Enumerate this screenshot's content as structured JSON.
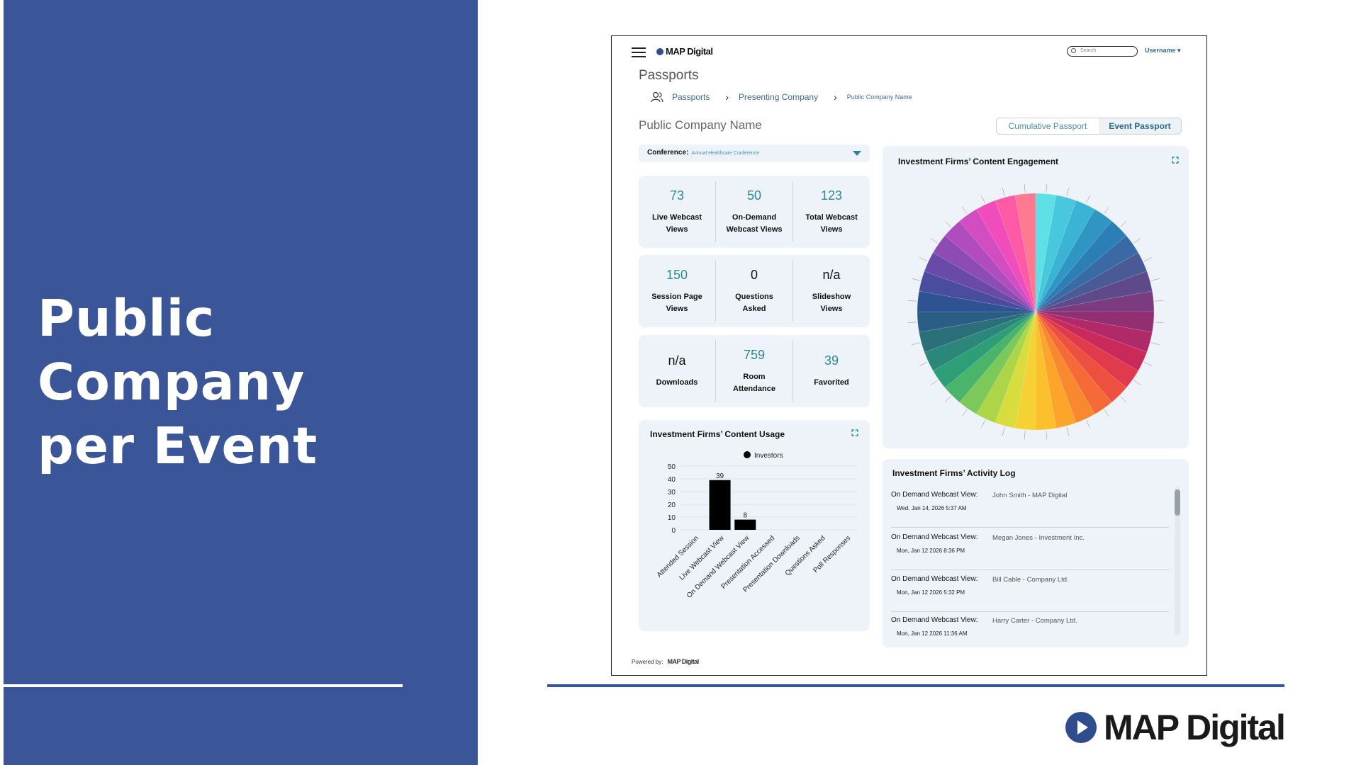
{
  "slide": {
    "title_line1": "Public Company",
    "title_line2": "per Event",
    "brand": "MAP Digital"
  },
  "app": {
    "logo": "MAP Digital",
    "search_placeholder": "Search",
    "username": "Username",
    "page_heading": "Passports",
    "breadcrumb": {
      "item1": "Passports",
      "item2": "Presenting Company",
      "item3": "Public Company Name"
    },
    "company_name": "Public Company Name",
    "passport_tabs": {
      "cumulative": "Cumulative Passport",
      "event": "Event Passport"
    },
    "conference": {
      "label": "Conference:",
      "value": "Annual Healthcare Conference"
    },
    "stats": [
      [
        {
          "value": "73",
          "label1": "Live Webcast",
          "label2": "Views"
        },
        {
          "value": "50",
          "label1": "On-Demand",
          "label2": "Webcast Views"
        },
        {
          "value": "123",
          "label1": "Total Webcast",
          "label2": "Views"
        }
      ],
      [
        {
          "value": "150",
          "label1": "Session Page",
          "label2": "Views"
        },
        {
          "value": "0",
          "label1": "Questions",
          "label2": "Asked"
        },
        {
          "value": "n/a",
          "label1": "Slideshow",
          "label2": "Views"
        }
      ],
      [
        {
          "value": "n/a",
          "label1": "Downloads",
          "label2": ""
        },
        {
          "value": "759",
          "label1": "Room",
          "label2": "Attendance"
        },
        {
          "value": "39",
          "label1": "Favorited",
          "label2": ""
        }
      ]
    ],
    "usage_title": "Investment Firms’ Content Usage",
    "engagement_title": "Investment Firms’ Content Engagement",
    "activity_title": "Investment Firms’ Activity Log",
    "activity": [
      {
        "type": "On Demand Webcast View:",
        "who": "John Smith - MAP Digital",
        "when": "Wed, Jan 14, 2026 5:37 AM"
      },
      {
        "type": "On Demand Webcast View:",
        "who": "Megan Jones - Investment Inc.",
        "when": "Mon, Jan 12 2026 8:36 PM"
      },
      {
        "type": "On Demand Webcast View:",
        "who": "Bill Cable - Company Ltd.",
        "when": "Mon, Jan 12 2026 5:32 PM"
      },
      {
        "type": "On Demand Webcast View:",
        "who": "Harry Carter - Company Ltd.",
        "when": "Mon, Jan 12 2026 11:36 AM"
      }
    ],
    "powered_by": "Powered by:",
    "powered_logo": "MAP Digital"
  },
  "chart_data": [
    {
      "type": "bar",
      "title": "Investment Firms’ Content Usage",
      "categories": [
        "Attended Session",
        "Live Webcast View",
        "On Demand Webcast View",
        "Presentation Accessed",
        "Presentation Downloads",
        "Questions Asked",
        "Poll Responses"
      ],
      "series": [
        {
          "name": "Investors",
          "values": [
            0,
            39,
            8,
            0,
            0,
            0,
            0
          ],
          "color": "#000000"
        }
      ],
      "data_labels": [
        "",
        "39",
        "8",
        "",
        "",
        "",
        ""
      ],
      "ylim": [
        0,
        50
      ],
      "yticks": [
        0,
        10,
        20,
        30,
        40,
        50
      ],
      "grid": true,
      "legend": "top"
    },
    {
      "type": "pie",
      "title": "Investment Firms’ Content Engagement",
      "slices": 36,
      "values": [
        1,
        1,
        1,
        1,
        1,
        1,
        1,
        1,
        1,
        1,
        1,
        1,
        1,
        1,
        1,
        1,
        1,
        1,
        1,
        1,
        1,
        1,
        1,
        1,
        1,
        1,
        1,
        1,
        1,
        1,
        1,
        1,
        1,
        1,
        1,
        1
      ],
      "colors": [
        "#5ee0e6",
        "#48c8dc",
        "#3ab4d4",
        "#2f96c4",
        "#2c7fb6",
        "#3a6aa6",
        "#4a5a96",
        "#5e4a8a",
        "#7a3c7e",
        "#922e72",
        "#b02a6a",
        "#c92a5a",
        "#e03a4c",
        "#ee5040",
        "#f56a36",
        "#f9892e",
        "#fca52a",
        "#fbc02c",
        "#f4d234",
        "#d8dc3c",
        "#acd648",
        "#7cc85a",
        "#4ab46a",
        "#2e9e76",
        "#2a877a",
        "#2a6f7a",
        "#2a5e86",
        "#2e5292",
        "#4a4c9e",
        "#6a4aa8",
        "#8c4cb4",
        "#b04cbe",
        "#d24cc2",
        "#f04cbc",
        "#ff5aa6",
        "#ff7a90"
      ]
    }
  ]
}
